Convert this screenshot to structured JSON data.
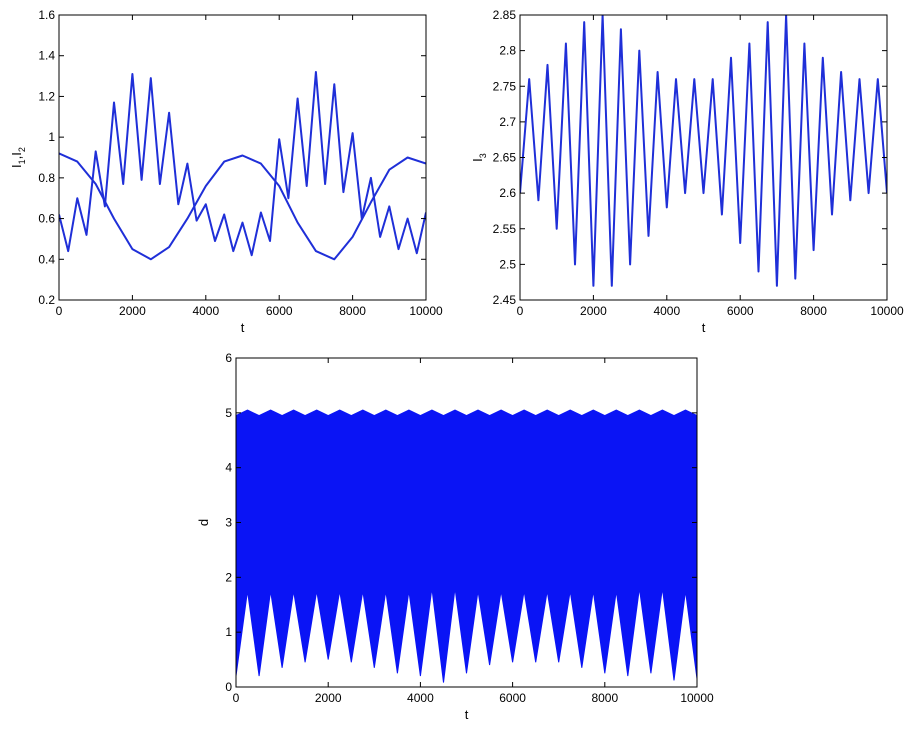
{
  "chart_data": [
    {
      "id": "top-left",
      "type": "line",
      "xlabel": "t",
      "ylabel_parts": [
        "I",
        "1",
        ",I",
        "2"
      ],
      "xlim": [
        0,
        10000
      ],
      "ylim": [
        0.2,
        1.6
      ],
      "xticks": [
        0,
        2000,
        4000,
        6000,
        8000,
        10000
      ],
      "yticks": [
        0.2,
        0.4,
        0.6,
        0.8,
        1,
        1.2,
        1.4,
        1.6
      ],
      "xtick_labels": [
        "0",
        "2000",
        "4000",
        "6000",
        "8000",
        "10000"
      ],
      "ytick_labels": [
        "0.2",
        "0.4",
        "0.6",
        "0.8",
        "1",
        "1.2",
        "1.4",
        "1.6"
      ],
      "series": [
        {
          "color": "#1f2fd8",
          "x": [
            0,
            250,
            500,
            750,
            1000,
            1250,
            1500,
            1750,
            2000,
            2250,
            2500,
            2750,
            3000,
            3250,
            3500,
            3750,
            4000,
            4250,
            4500,
            4750,
            5000,
            5250,
            5500,
            5750,
            6000,
            6250,
            6500,
            6750,
            7000,
            7250,
            7500,
            7750,
            8000,
            8250,
            8500,
            8750,
            9000,
            9250,
            9500,
            9750,
            10000
          ],
          "values": [
            0.62,
            0.44,
            0.7,
            0.52,
            0.93,
            0.66,
            1.17,
            0.77,
            1.31,
            0.79,
            1.29,
            0.77,
            1.12,
            0.67,
            0.87,
            0.59,
            0.67,
            0.49,
            0.62,
            0.44,
            0.58,
            0.42,
            0.63,
            0.49,
            0.99,
            0.7,
            1.19,
            0.76,
            1.32,
            0.77,
            1.26,
            0.73,
            1.02,
            0.6,
            0.8,
            0.51,
            0.66,
            0.45,
            0.6,
            0.43,
            0.63
          ]
        },
        {
          "color": "#1f2fd8",
          "x": [
            0,
            500,
            1000,
            1500,
            2000,
            2500,
            3000,
            3500,
            4000,
            4500,
            5000,
            5500,
            6000,
            6500,
            7000,
            7500,
            8000,
            8500,
            9000,
            9500,
            10000
          ],
          "values": [
            0.92,
            0.88,
            0.77,
            0.6,
            0.45,
            0.4,
            0.46,
            0.6,
            0.76,
            0.88,
            0.91,
            0.87,
            0.76,
            0.58,
            0.44,
            0.4,
            0.51,
            0.68,
            0.84,
            0.9,
            0.87
          ]
        }
      ]
    },
    {
      "id": "top-right",
      "type": "line",
      "xlabel": "t",
      "ylabel_parts": [
        "I",
        "3"
      ],
      "xlim": [
        0,
        10000
      ],
      "ylim": [
        2.45,
        2.85
      ],
      "xticks": [
        0,
        2000,
        4000,
        6000,
        8000,
        10000
      ],
      "yticks": [
        2.45,
        2.5,
        2.55,
        2.6,
        2.65,
        2.7,
        2.75,
        2.8,
        2.85
      ],
      "xtick_labels": [
        "0",
        "2000",
        "4000",
        "6000",
        "8000",
        "10000"
      ],
      "ytick_labels": [
        "2.45",
        "2.5",
        "2.55",
        "2.6",
        "2.65",
        "2.7",
        "2.75",
        "2.8",
        "2.85"
      ],
      "series": [
        {
          "color": "#1f2fd8",
          "x": [
            0,
            250,
            500,
            750,
            1000,
            1250,
            1500,
            1750,
            2000,
            2250,
            2500,
            2750,
            3000,
            3250,
            3500,
            3750,
            4000,
            4250,
            4500,
            4750,
            5000,
            5250,
            5500,
            5750,
            6000,
            6250,
            6500,
            6750,
            7000,
            7250,
            7500,
            7750,
            8000,
            8250,
            8500,
            8750,
            9000,
            9250,
            9500,
            9750,
            10000
          ],
          "values": [
            2.6,
            2.76,
            2.59,
            2.78,
            2.55,
            2.81,
            2.5,
            2.84,
            2.47,
            2.85,
            2.47,
            2.83,
            2.5,
            2.8,
            2.54,
            2.77,
            2.58,
            2.76,
            2.6,
            2.76,
            2.6,
            2.76,
            2.57,
            2.79,
            2.53,
            2.81,
            2.49,
            2.84,
            2.47,
            2.85,
            2.48,
            2.81,
            2.52,
            2.79,
            2.57,
            2.77,
            2.59,
            2.76,
            2.6,
            2.76,
            2.6
          ]
        }
      ]
    },
    {
      "id": "bottom",
      "type": "area",
      "xlabel": "t",
      "ylabel": "d",
      "xlim": [
        0,
        10000
      ],
      "ylim": [
        0,
        6
      ],
      "xticks": [
        0,
        2000,
        4000,
        6000,
        8000,
        10000
      ],
      "yticks": [
        0,
        1,
        2,
        3,
        4,
        5,
        6
      ],
      "xtick_labels": [
        "0",
        "2000",
        "4000",
        "6000",
        "8000",
        "10000"
      ],
      "ytick_labels": [
        "0",
        "1",
        "2",
        "3",
        "4",
        "5",
        "6"
      ],
      "band_color": "#0a14f5",
      "upper": {
        "x": [
          0,
          250,
          500,
          750,
          1000,
          1250,
          1500,
          1750,
          2000,
          2250,
          2500,
          2750,
          3000,
          3250,
          3500,
          3750,
          4000,
          4250,
          4500,
          4750,
          5000,
          5250,
          5500,
          5750,
          6000,
          6250,
          6500,
          6750,
          7000,
          7250,
          7500,
          7750,
          8000,
          8250,
          8500,
          8750,
          9000,
          9250,
          9500,
          9750,
          10000
        ],
        "values": [
          4.95,
          5.05,
          4.95,
          5.05,
          4.95,
          5.05,
          4.95,
          5.05,
          4.95,
          5.05,
          4.95,
          5.05,
          4.95,
          5.05,
          4.95,
          5.05,
          4.95,
          5.05,
          4.95,
          5.05,
          4.95,
          5.05,
          4.95,
          5.05,
          4.95,
          5.05,
          4.95,
          5.05,
          4.95,
          5.05,
          4.95,
          5.05,
          4.95,
          5.05,
          4.95,
          5.05,
          4.95,
          5.05,
          4.95,
          5.05,
          4.95
        ]
      },
      "lower": {
        "x": [
          0,
          250,
          500,
          750,
          1000,
          1250,
          1500,
          1750,
          2000,
          2250,
          2500,
          2750,
          3000,
          3250,
          3500,
          3750,
          4000,
          4250,
          4500,
          4750,
          5000,
          5250,
          5500,
          5750,
          6000,
          6250,
          6500,
          6750,
          7000,
          7250,
          7500,
          7750,
          8000,
          8250,
          8500,
          8750,
          9000,
          9250,
          9500,
          9750,
          10000
        ],
        "values": [
          0.2,
          1.75,
          0.2,
          1.75,
          0.35,
          1.75,
          0.45,
          1.75,
          0.5,
          1.75,
          0.45,
          1.75,
          0.35,
          1.75,
          0.25,
          1.75,
          0.2,
          1.8,
          0.08,
          1.8,
          0.25,
          1.75,
          0.4,
          1.75,
          0.45,
          1.75,
          0.45,
          1.75,
          0.45,
          1.75,
          0.35,
          1.75,
          0.25,
          1.75,
          0.2,
          1.8,
          0.25,
          1.8,
          0.12,
          1.75,
          0.15
        ]
      }
    }
  ]
}
